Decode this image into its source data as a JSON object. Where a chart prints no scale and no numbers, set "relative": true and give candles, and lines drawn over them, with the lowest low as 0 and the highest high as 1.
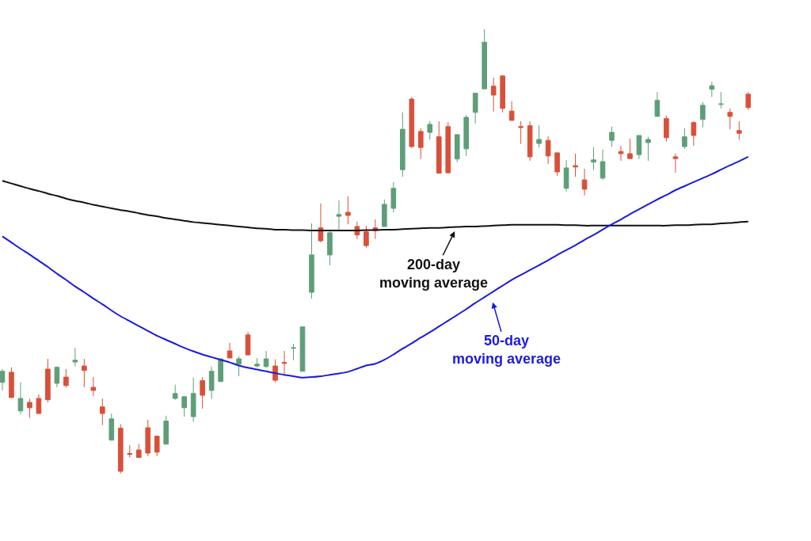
{
  "chart_data": {
    "type": "candlestick",
    "relative": true,
    "categories": [
      null,
      null,
      null,
      null,
      null,
      null,
      null,
      null,
      null,
      null,
      null,
      null,
      null,
      null,
      null,
      null,
      null,
      null,
      null,
      null,
      null,
      null,
      null,
      null,
      null,
      null,
      null,
      null,
      null,
      null,
      null,
      null,
      null,
      null,
      null,
      null,
      null,
      null,
      null,
      null,
      null,
      null,
      null,
      null,
      null,
      null,
      null,
      null,
      null,
      null,
      null,
      null,
      null,
      null,
      null,
      null,
      null,
      null,
      null,
      null,
      null,
      null,
      null,
      null,
      null,
      null,
      null,
      null,
      null,
      null,
      null,
      null,
      null,
      null,
      null,
      null,
      null,
      null,
      null,
      null,
      null,
      null,
      null
    ],
    "colors": [
      "#5e9e78",
      "#d9503a",
      "#5e9e78",
      "#d9503a",
      "#d9503a",
      "#d9503a",
      "#5e9e78",
      "#d9503a",
      "#5e9e78",
      "#d9503a",
      "#d9503a",
      "#d9503a",
      "#5e9e78",
      "#d9503a",
      "#d9503a",
      "#d9503a",
      "#d9503a",
      "#d9503a",
      "#5e9e78",
      "#5e9e78",
      "#5e9e78",
      "#5e9e78",
      "#d9503a",
      "#5e9e78",
      "#5e9e78",
      "#d9503a",
      "#5e9e78",
      "#d9503a",
      "#5e9e78",
      "#5e9e78",
      "#d9503a",
      "#d9503a",
      "#5e9e78",
      "#5e9e78",
      "#5e9e78",
      "#d9503a",
      "#5e9e78",
      "#5e9e78",
      "#d9503a",
      "#d9503a",
      "#d9503a",
      "#d9503a",
      "#5e9e78",
      "#5e9e78",
      "#5e9e78",
      "#d9503a",
      "#d9503a",
      "#5e9e78",
      "#d9503a",
      "#d9503a",
      "#5e9e78",
      "#5e9e78",
      "#5e9e78",
      "#5e9e78",
      "#d9503a",
      "#d9503a",
      "#d9503a",
      "#d9503a",
      "#d9503a",
      "#5e9e78",
      "#d9503a",
      "#d9503a",
      "#5e9e78",
      "#d9503a",
      "#d9503a",
      "#5e9e78",
      "#5e9e78",
      "#5e9e78",
      "#d9503a",
      "#d9503a",
      "#5e9e78",
      "#5e9e78",
      "#5e9e78",
      "#d9503a",
      "#d9503a",
      "#5e9e78",
      "#d9503a",
      "#5e9e78",
      "#5e9e78",
      "#5e9e78",
      "#d9503a",
      "#d9503a",
      "#d9503a"
    ],
    "ohlc": [
      [
        0.205,
        0.235,
        0.187,
        0.23
      ],
      [
        0.228,
        0.239,
        0.171,
        0.171
      ],
      [
        0.141,
        0.205,
        0.134,
        0.169
      ],
      [
        0.16,
        0.168,
        0.125,
        0.148
      ],
      [
        0.169,
        0.178,
        0.135,
        0.135
      ],
      [
        0.235,
        0.258,
        0.16,
        0.166
      ],
      [
        0.203,
        0.241,
        0.194,
        0.239
      ],
      [
        0.217,
        0.235,
        0.193,
        0.198
      ],
      [
        0.251,
        0.283,
        0.241,
        0.255
      ],
      [
        0.242,
        0.258,
        0.194,
        0.232
      ],
      [
        0.194,
        0.217,
        0.175,
        0.187
      ],
      [
        0.15,
        0.169,
        0.109,
        0.135
      ],
      [
        0.075,
        0.135,
        0.075,
        0.123
      ],
      [
        0.102,
        0.111,
        0.0,
        0.005
      ],
      [
        0.045,
        0.064,
        0.036,
        0.043
      ],
      [
        0.053,
        0.066,
        0.036,
        0.036
      ],
      [
        0.103,
        0.121,
        0.039,
        0.046
      ],
      [
        0.084,
        0.084,
        0.039,
        0.048
      ],
      [
        0.066,
        0.13,
        0.066,
        0.118
      ],
      [
        0.169,
        0.2,
        0.166,
        0.18
      ],
      [
        0.148,
        0.173,
        0.128,
        0.173
      ],
      [
        0.128,
        0.216,
        0.116,
        0.18
      ],
      [
        0.209,
        0.217,
        0.146,
        0.176
      ],
      [
        0.187,
        0.241,
        0.168,
        0.23
      ],
      [
        0.207,
        0.258,
        0.207,
        0.258
      ],
      [
        0.276,
        0.294,
        0.26,
        0.26
      ],
      [
        0.246,
        0.264,
        0.219,
        0.258
      ],
      [
        0.312,
        0.319,
        0.267,
        0.267
      ],
      [
        0.242,
        0.26,
        0.239,
        0.246
      ],
      [
        0.241,
        0.276,
        0.237,
        0.258
      ],
      [
        0.242,
        0.257,
        0.205,
        0.21
      ],
      [
        0.25,
        0.276,
        0.223,
        0.248
      ],
      [
        0.282,
        0.292,
        0.255,
        0.283
      ],
      [
        0.23,
        0.33,
        0.23,
        0.33
      ],
      [
        0.408,
        0.563,
        0.394,
        0.492
      ],
      [
        0.553,
        0.608,
        0.52,
        0.524
      ],
      [
        0.492,
        0.549,
        0.469,
        0.542
      ],
      [
        0.579,
        0.615,
        0.549,
        0.583
      ],
      [
        0.588,
        0.624,
        0.561,
        0.581
      ],
      [
        0.556,
        0.567,
        0.528,
        0.537
      ],
      [
        0.544,
        0.558,
        0.508,
        0.513
      ],
      [
        0.553,
        0.572,
        0.528,
        0.547
      ],
      [
        0.556,
        0.617,
        0.556,
        0.606
      ],
      [
        0.597,
        0.656,
        0.588,
        0.642
      ],
      [
        0.684,
        0.813,
        0.668,
        0.775
      ],
      [
        0.843,
        0.847,
        0.733,
        0.736
      ],
      [
        0.77,
        0.777,
        0.708,
        0.734
      ],
      [
        0.768,
        0.793,
        0.752,
        0.786
      ],
      [
        0.758,
        0.793,
        0.676,
        0.676
      ],
      [
        0.781,
        0.791,
        0.677,
        0.677
      ],
      [
        0.708,
        0.763,
        0.701,
        0.763
      ],
      [
        0.731,
        0.807,
        0.715,
        0.802
      ],
      [
        0.813,
        0.856,
        0.788,
        0.856
      ],
      [
        0.866,
        1.0,
        0.866,
        0.971
      ],
      [
        0.872,
        0.891,
        0.815,
        0.852
      ],
      [
        0.895,
        0.897,
        0.813,
        0.822
      ],
      [
        0.816,
        0.838,
        0.795,
        0.795
      ],
      [
        0.781,
        0.793,
        0.742,
        0.779
      ],
      [
        0.783,
        0.793,
        0.704,
        0.713
      ],
      [
        0.743,
        0.784,
        0.734,
        0.752
      ],
      [
        0.75,
        0.759,
        0.697,
        0.715
      ],
      [
        0.722,
        0.722,
        0.67,
        0.679
      ],
      [
        0.642,
        0.706,
        0.635,
        0.688
      ],
      [
        0.693,
        0.72,
        0.668,
        0.69
      ],
      [
        0.661,
        0.686,
        0.626,
        0.64
      ],
      [
        0.701,
        0.734,
        0.683,
        0.706
      ],
      [
        0.665,
        0.729,
        0.661,
        0.702
      ],
      [
        0.75,
        0.781,
        0.736,
        0.768
      ],
      [
        0.725,
        0.738,
        0.704,
        0.72
      ],
      [
        0.72,
        0.754,
        0.709,
        0.709
      ],
      [
        0.718,
        0.761,
        0.708,
        0.761
      ],
      [
        0.745,
        0.758,
        0.704,
        0.752
      ],
      [
        0.804,
        0.859,
        0.804,
        0.84
      ],
      [
        0.799,
        0.806,
        0.747,
        0.756
      ],
      [
        0.713,
        0.72,
        0.677,
        0.709
      ],
      [
        0.736,
        0.777,
        0.731,
        0.758
      ],
      [
        0.79,
        0.793,
        0.738,
        0.761
      ],
      [
        0.797,
        0.836,
        0.779,
        0.829
      ],
      [
        0.865,
        0.882,
        0.848,
        0.873
      ],
      [
        0.831,
        0.859,
        0.822,
        0.832
      ],
      [
        0.813,
        0.822,
        0.775,
        0.804
      ],
      [
        0.772,
        0.793,
        0.752,
        0.766
      ],
      [
        0.854,
        0.859,
        0.818,
        0.824
      ]
    ],
    "series": [
      {
        "type": "line",
        "color": "#111111",
        "values": [
          0.659,
          0.653,
          0.647,
          0.641,
          0.636,
          0.63,
          0.625,
          0.619,
          0.614,
          0.61,
          0.605,
          0.601,
          0.597,
          0.593,
          0.59,
          0.586,
          0.582,
          0.579,
          0.575,
          0.572,
          0.569,
          0.566,
          0.564,
          0.562,
          0.56,
          0.558,
          0.556,
          0.554,
          0.552,
          0.551,
          0.549,
          0.549,
          0.548,
          0.548,
          0.547,
          0.547,
          0.547,
          0.547,
          0.547,
          0.547,
          0.548,
          0.548,
          0.549,
          0.549,
          0.55,
          0.551,
          0.552,
          0.553,
          0.553,
          0.554,
          0.555,
          0.556,
          0.556,
          0.557,
          0.558,
          0.559,
          0.56,
          0.56,
          0.56,
          0.56,
          0.56,
          0.56,
          0.559,
          0.559,
          0.558,
          0.558,
          0.558,
          0.558,
          0.558,
          0.558,
          0.558,
          0.558,
          0.558,
          0.558,
          0.559,
          0.559,
          0.56,
          0.561,
          0.561,
          0.563,
          0.564,
          0.566,
          0.567
        ]
      },
      {
        "type": "line",
        "color": "#1a1ae0",
        "values": [
          0.534,
          0.52,
          0.506,
          0.493,
          0.479,
          0.465,
          0.45,
          0.436,
          0.421,
          0.408,
          0.394,
          0.381,
          0.367,
          0.354,
          0.343,
          0.332,
          0.321,
          0.31,
          0.301,
          0.292,
          0.283,
          0.275,
          0.268,
          0.262,
          0.256,
          0.25,
          0.243,
          0.238,
          0.234,
          0.23,
          0.226,
          0.222,
          0.219,
          0.216,
          0.217,
          0.219,
          0.222,
          0.225,
          0.229,
          0.236,
          0.243,
          0.247,
          0.256,
          0.268,
          0.281,
          0.293,
          0.306,
          0.318,
          0.331,
          0.344,
          0.357,
          0.37,
          0.384,
          0.397,
          0.41,
          0.423,
          0.436,
          0.447,
          0.458,
          0.469,
          0.48,
          0.492,
          0.503,
          0.514,
          0.526,
          0.537,
          0.549,
          0.561,
          0.572,
          0.584,
          0.595,
          0.606,
          0.617,
          0.627,
          0.638,
          0.647,
          0.656,
          0.665,
          0.674,
          0.684,
          0.694,
          0.703,
          0.713
        ]
      }
    ],
    "annotations": [
      "200-day\nmoving average",
      "50-day\nmoving average"
    ]
  }
}
